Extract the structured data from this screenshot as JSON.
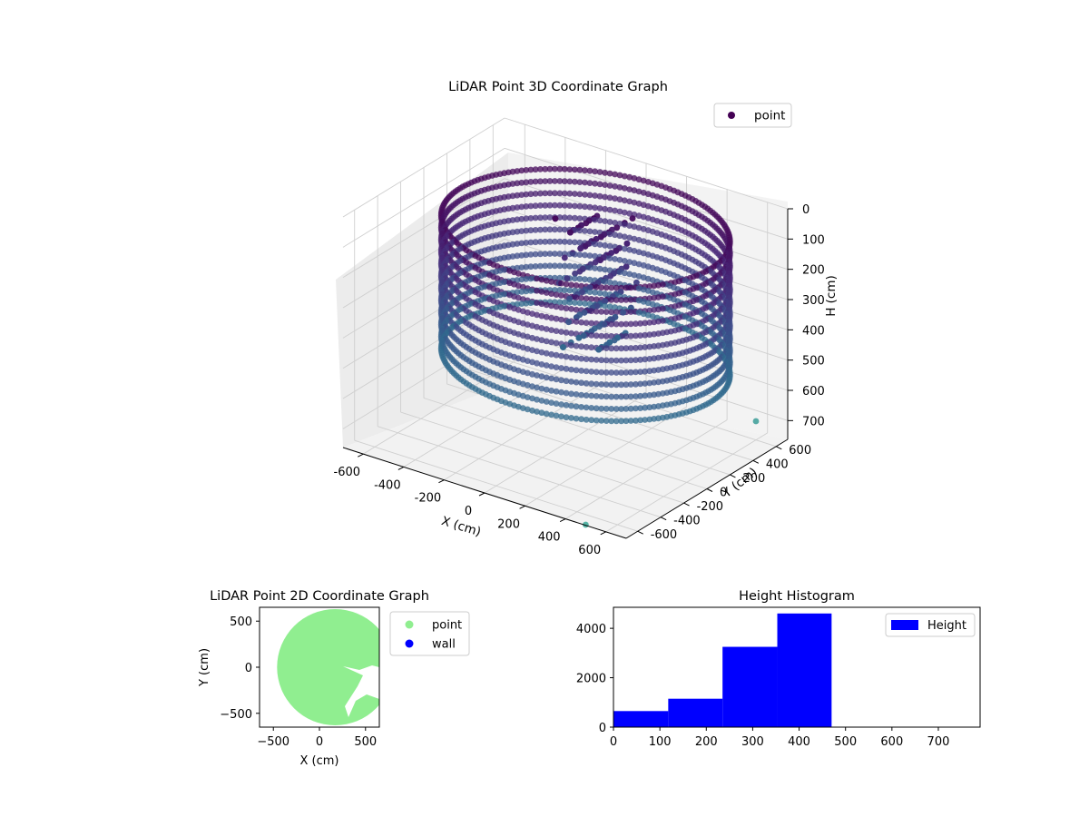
{
  "chart_data": [
    {
      "type": "scatter",
      "projection": "3d",
      "title": "LiDAR Point 3D Coordinate Graph",
      "xlabel": "X (cm)",
      "ylabel": "Y (cm)",
      "zlabel": "H (cm)",
      "xlim": [
        -700,
        700
      ],
      "ylim": [
        -700,
        700
      ],
      "zlim": [
        760,
        0
      ],
      "z_inverted": true,
      "xticks": [
        -600,
        -400,
        -200,
        0,
        200,
        400,
        600
      ],
      "yticks": [
        -600,
        -400,
        -200,
        0,
        200,
        400,
        600
      ],
      "zticks": [
        0,
        100,
        200,
        300,
        400,
        500,
        600,
        700
      ],
      "grid": true,
      "colormap": "viridis",
      "legend": {
        "position": "top-right",
        "entries": [
          {
            "label": "point",
            "color": "#440154"
          }
        ]
      },
      "series": [
        {
          "name": "point",
          "shape": "cylindrical wall of points",
          "radius": 620,
          "center": [
            100,
            0
          ],
          "height_range": [
            30,
            470
          ],
          "interior_cluster": {
            "x": [
              -50,
              200
            ],
            "y": [
              0,
              300
            ],
            "h": [
              30,
              470
            ]
          },
          "outliers": [
            {
              "x": 600,
              "y": 600,
              "h": 700
            },
            {
              "x": 500,
              "y": -700,
              "h": 760
            }
          ]
        }
      ]
    },
    {
      "type": "scatter",
      "title": "LiDAR Point 2D Coordinate Graph",
      "xlabel": "X (cm)",
      "ylabel": "Y (cm)",
      "xlim": [
        -650,
        650
      ],
      "ylim": [
        -650,
        650
      ],
      "xticks": [
        -500,
        0,
        500
      ],
      "yticks": [
        -500,
        0,
        500
      ],
      "legend": {
        "position": "right",
        "entries": [
          {
            "label": "point",
            "color": "#90ee90"
          },
          {
            "label": "wall",
            "color": "#0000ff"
          }
        ]
      },
      "series": [
        {
          "name": "point",
          "color": "#90ee90",
          "shape": "filled disk",
          "center": [
            170,
            0
          ],
          "radius": 630
        },
        {
          "name": "wall",
          "color": "#0000ff",
          "points": []
        }
      ]
    },
    {
      "type": "bar",
      "subtype": "histogram",
      "title": "Height Histogram",
      "xlabel": "",
      "ylabel": "",
      "xlim": [
        0,
        790
      ],
      "ylim": [
        0,
        4850
      ],
      "xticks": [
        0,
        100,
        200,
        300,
        400,
        500,
        600,
        700
      ],
      "yticks": [
        0,
        2000,
        4000
      ],
      "legend": {
        "position": "top-right",
        "entries": [
          {
            "label": "Height",
            "color": "#0000ff"
          }
        ]
      },
      "series": [
        {
          "name": "Height",
          "color": "#0000ff",
          "bins": [
            {
              "x0": 0,
              "x1": 118,
              "value": 650
            },
            {
              "x0": 118,
              "x1": 235,
              "value": 1150
            },
            {
              "x0": 235,
              "x1": 353,
              "value": 3250
            },
            {
              "x0": 353,
              "x1": 470,
              "value": 4600
            },
            {
              "x0": 470,
              "x1": 588,
              "value": 0
            },
            {
              "x0": 588,
              "x1": 705,
              "value": 0
            },
            {
              "x0": 705,
              "x1": 790,
              "value": 0
            }
          ]
        }
      ]
    }
  ]
}
